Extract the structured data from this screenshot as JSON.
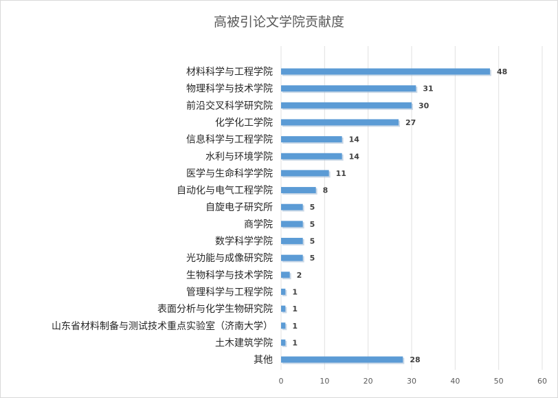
{
  "chart_data": {
    "type": "bar",
    "orientation": "horizontal",
    "title": "高被引论文学院贡献度",
    "categories": [
      "材料科学与工程学院",
      "物理科学与技术学院",
      "前沿交叉科学研究院",
      "化学化工学院",
      "信息科学与工程学院",
      "水利与环境学院",
      "医学与生命科学学院",
      "自动化与电气工程学院",
      "自旋电子研究所",
      "商学院",
      "数学科学学院",
      "光功能与成像研究院",
      "生物科学与技术学院",
      "管理科学与工程学院",
      "表面分析与化学生物研究院",
      "山东省材料制备与测试技术重点实验室（济南大学）",
      "土木建筑学院",
      "其他"
    ],
    "values": [
      48,
      31,
      30,
      27,
      14,
      14,
      11,
      8,
      5,
      5,
      5,
      5,
      2,
      1,
      1,
      1,
      1,
      28
    ],
    "xlim": [
      0,
      60
    ],
    "xticks": [
      0,
      10,
      20,
      30,
      40,
      50,
      60
    ],
    "grid": true,
    "bar_color": "#5b9bd5",
    "data_labels": true
  }
}
